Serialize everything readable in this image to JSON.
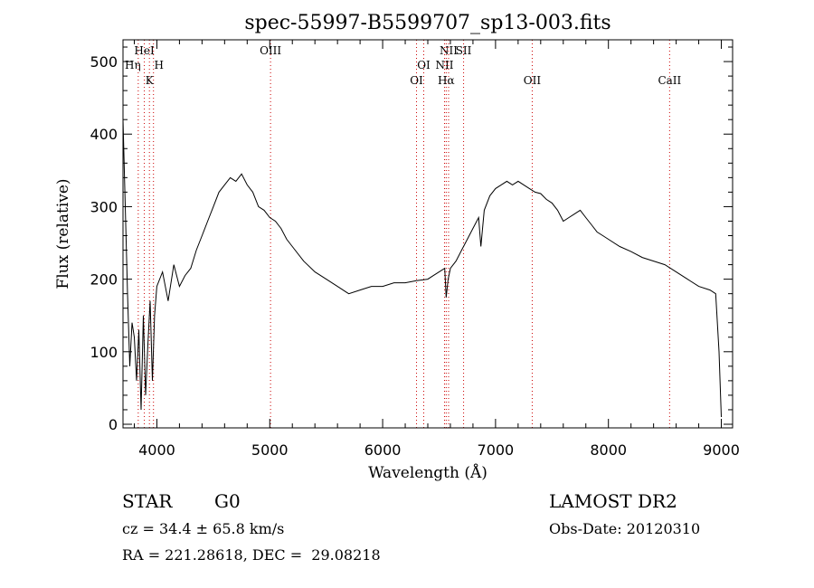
{
  "chart_data": {
    "type": "line",
    "title": "spec-55997-B5599707_sp13-003.fits",
    "xlabel": "Wavelength (Å)",
    "ylabel": "Flux (relative)",
    "xlim": [
      3700,
      9100
    ],
    "ylim": [
      -5,
      530
    ],
    "xticks": [
      4000,
      5000,
      6000,
      7000,
      8000,
      9000
    ],
    "yticks": [
      0,
      100,
      200,
      300,
      400,
      500
    ],
    "line_color": "#000000",
    "marker_color": "#cc0000",
    "series": [
      {
        "x": [
          3700,
          3720,
          3740,
          3760,
          3780,
          3800,
          3820,
          3840,
          3860,
          3880,
          3900,
          3920,
          3940,
          3960,
          3980,
          4000,
          4050,
          4100,
          4150,
          4200,
          4250,
          4300,
          4350,
          4400,
          4450,
          4500,
          4550,
          4600,
          4650,
          4700,
          4750,
          4800,
          4850,
          4900,
          4950,
          5000,
          5050,
          5100,
          5150,
          5200,
          5300,
          5400,
          5500,
          5600,
          5700,
          5800,
          5900,
          6000,
          6100,
          6200,
          6300,
          6400,
          6450,
          6500,
          6550,
          6563,
          6580,
          6600,
          6650,
          6700,
          6750,
          6800,
          6850,
          6870,
          6900,
          6950,
          7000,
          7050,
          7100,
          7150,
          7200,
          7250,
          7300,
          7350,
          7400,
          7450,
          7500,
          7550,
          7600,
          7650,
          7700,
          7750,
          7800,
          7850,
          7900,
          7950,
          8000,
          8100,
          8200,
          8300,
          8400,
          8500,
          8600,
          8700,
          8800,
          8900,
          8950,
          8980,
          9000
        ],
        "y": [
          420,
          300,
          180,
          80,
          140,
          120,
          60,
          130,
          20,
          150,
          40,
          110,
          170,
          60,
          150,
          190,
          210,
          170,
          220,
          190,
          205,
          215,
          240,
          260,
          280,
          300,
          320,
          330,
          340,
          335,
          345,
          330,
          320,
          300,
          295,
          285,
          280,
          270,
          255,
          245,
          225,
          210,
          200,
          190,
          180,
          185,
          190,
          190,
          195,
          195,
          198,
          200,
          205,
          210,
          215,
          175,
          200,
          215,
          225,
          240,
          255,
          270,
          285,
          245,
          295,
          315,
          325,
          330,
          335,
          330,
          335,
          330,
          325,
          320,
          318,
          310,
          305,
          295,
          280,
          285,
          290,
          295,
          285,
          275,
          265,
          260,
          255,
          245,
          238,
          230,
          225,
          220,
          210,
          200,
          190,
          185,
          180,
          100,
          10
        ]
      }
    ],
    "lines": [
      {
        "label": "HeI",
        "x": 3889
      },
      {
        "label": "Hη",
        "x": 3835
      },
      {
        "label": "H",
        "x": 3970
      },
      {
        "label": "K",
        "x": 3934
      },
      {
        "label": "OIII",
        "x": 5007
      },
      {
        "label": "OI",
        "x": 6364
      },
      {
        "label": "OI",
        "x": 6300
      },
      {
        "label": "NII",
        "x": 6584
      },
      {
        "label": "SII",
        "x": 6717
      },
      {
        "label": "NII",
        "x": 6548
      },
      {
        "label": "Hα",
        "x": 6563
      },
      {
        "label": "OII",
        "x": 7325
      },
      {
        "label": "CaII",
        "x": 8542
      }
    ]
  },
  "info": {
    "object_class": "STAR",
    "subclass": "G0",
    "survey": "LAMOST DR2",
    "cz": "cz = 34.4 ± 65.8 km/s",
    "obs_date": "Obs-Date: 20120310",
    "coords": "RA = 221.28618, DEC =  29.08218"
  }
}
